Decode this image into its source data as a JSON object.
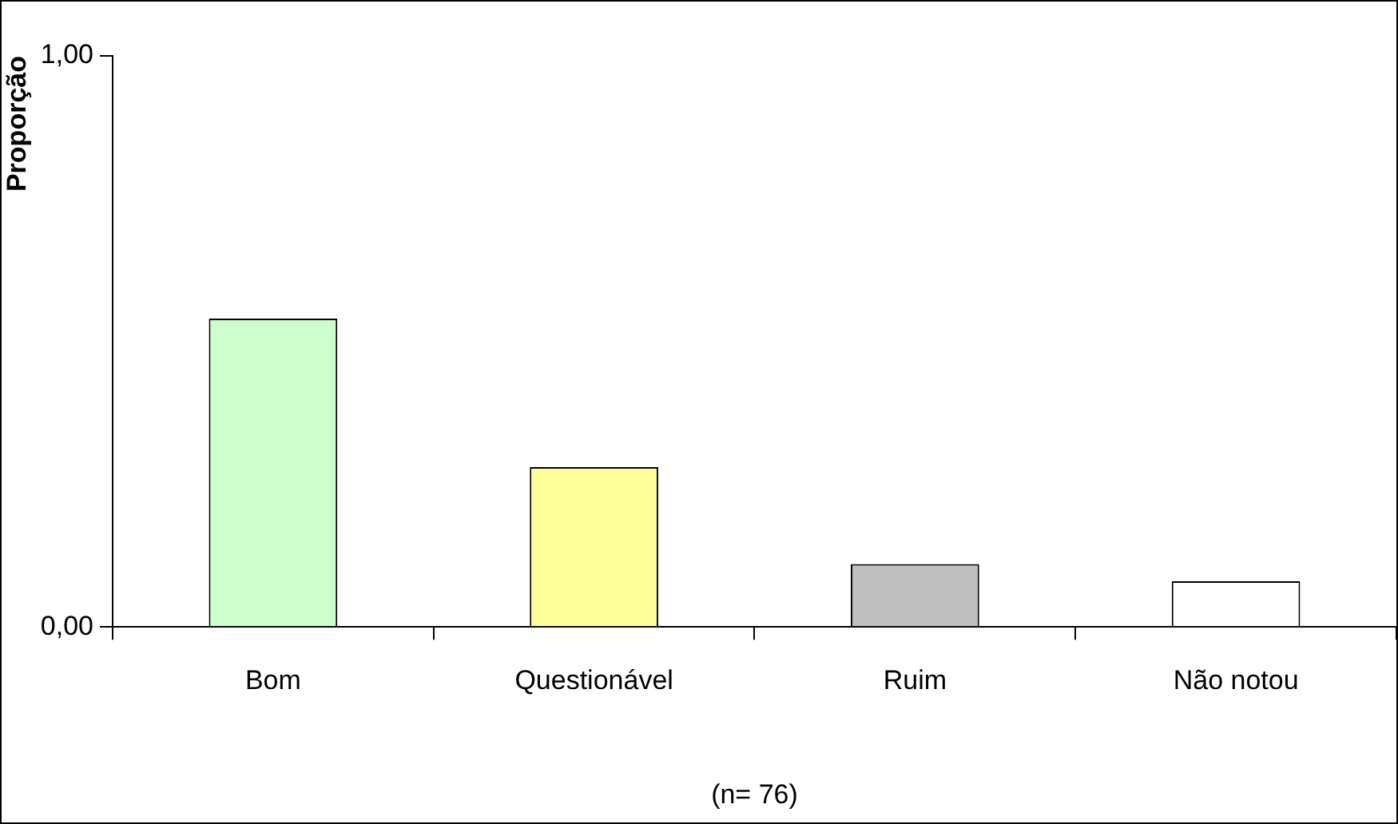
{
  "chart_data": {
    "type": "bar",
    "ylabel": "Proporção",
    "categories": [
      "Bom",
      "Questionável",
      "Ruim",
      "Não notou"
    ],
    "values": [
      0.54,
      0.28,
      0.11,
      0.08
    ],
    "colors": [
      "#ccffcc",
      "#ffff99",
      "#c0c0c0",
      "#ffffff"
    ],
    "ylim": [
      0,
      1
    ],
    "yticks": [
      {
        "value": 0,
        "label": "0,00"
      },
      {
        "value": 1,
        "label": "1,00"
      }
    ],
    "grid": false,
    "legend": false,
    "annotations": [
      "(n= 76)"
    ]
  }
}
